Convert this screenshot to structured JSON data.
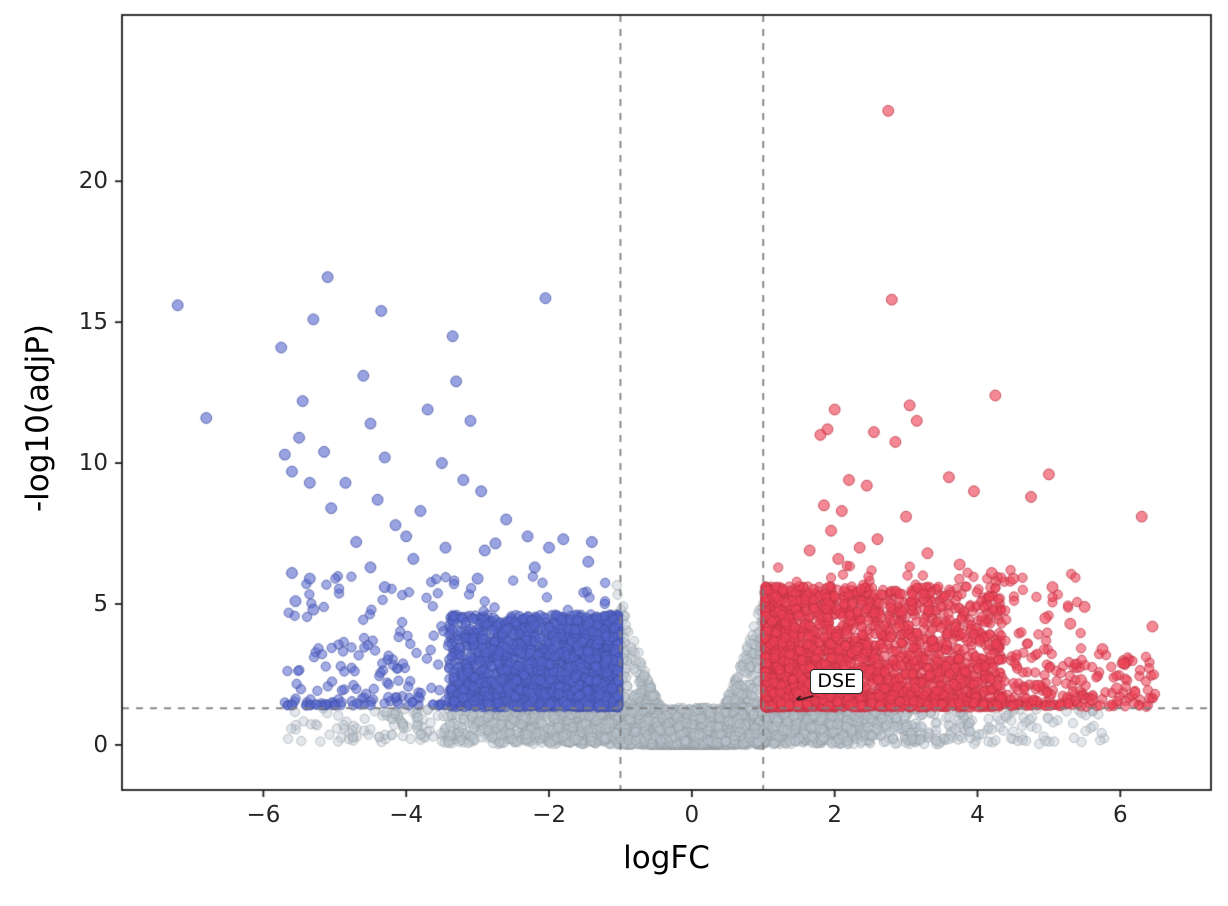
{
  "figure": {
    "background": "#ffffff"
  },
  "chart_data": {
    "type": "scatter",
    "variant": "volcano-plot",
    "title": "",
    "xlabel": "logFC",
    "ylabel": "-log10(adjP)",
    "xlim": [
      -7.98,
      7.27
    ],
    "ylim": [
      -1.6,
      25.9
    ],
    "xticks": [
      -6,
      -4,
      -2,
      0,
      2,
      4,
      6
    ],
    "yticks": [
      0,
      5,
      10,
      15,
      20
    ],
    "grid": false,
    "legend": null,
    "threshold_lines": {
      "vertical_x": [
        -1,
        1
      ],
      "horizontal_y": 1.3,
      "style": "dashed",
      "color": "#7f7f7f"
    },
    "annotation": {
      "label": "DSE",
      "label_x": 1.66,
      "label_y": 2.2,
      "point_x": 1.5,
      "point_y": 1.8
    },
    "series_colors": {
      "up": "#ee4256",
      "down": "#5566cd",
      "ns": "#b8c4cc"
    },
    "notable_points": {
      "down": [
        [
          -5.1,
          16.6
        ],
        [
          -7.2,
          15.6
        ],
        [
          -2.05,
          15.85
        ],
        [
          -4.35,
          15.4
        ],
        [
          -5.3,
          15.1
        ],
        [
          -3.35,
          14.5
        ],
        [
          -5.75,
          14.1
        ],
        [
          -4.6,
          13.1
        ],
        [
          -3.3,
          12.9
        ],
        [
          -5.45,
          12.2
        ],
        [
          -3.7,
          11.9
        ],
        [
          -6.8,
          11.6
        ],
        [
          -4.5,
          11.4
        ],
        [
          -3.1,
          11.5
        ],
        [
          -5.5,
          10.9
        ],
        [
          -5.7,
          10.3
        ],
        [
          -5.15,
          10.4
        ],
        [
          -4.3,
          10.2
        ],
        [
          -3.5,
          10.0
        ],
        [
          -5.6,
          9.7
        ],
        [
          -5.35,
          9.3
        ],
        [
          -4.85,
          9.3
        ],
        [
          -3.2,
          9.4
        ],
        [
          -2.95,
          9.0
        ],
        [
          -4.4,
          8.7
        ],
        [
          -5.05,
          8.4
        ],
        [
          -3.8,
          8.3
        ],
        [
          -2.6,
          8.0
        ],
        [
          -4.15,
          7.8
        ],
        [
          -2.3,
          7.4
        ],
        [
          -1.4,
          7.2
        ],
        [
          -2.0,
          7.0
        ],
        [
          -4.7,
          7.2
        ],
        [
          -4.0,
          7.4
        ],
        [
          -3.45,
          7.0
        ],
        [
          -2.75,
          7.15
        ],
        [
          -1.8,
          7.3
        ],
        [
          -1.45,
          6.5
        ],
        [
          -2.2,
          6.3
        ],
        [
          -3.0,
          5.9
        ],
        [
          -4.3,
          5.6
        ],
        [
          -3.9,
          6.6
        ],
        [
          -2.9,
          6.9
        ],
        [
          -5.6,
          6.1
        ],
        [
          -5.35,
          5.9
        ],
        [
          -4.5,
          6.3
        ],
        [
          -5.55,
          5.1
        ],
        [
          -5.3,
          4.8
        ]
      ],
      "up": [
        [
          2.75,
          22.5
        ],
        [
          2.8,
          15.8
        ],
        [
          4.25,
          12.4
        ],
        [
          3.05,
          12.05
        ],
        [
          2.0,
          11.9
        ],
        [
          3.15,
          11.5
        ],
        [
          1.9,
          11.2
        ],
        [
          1.8,
          11.0
        ],
        [
          2.55,
          11.1
        ],
        [
          2.85,
          10.75
        ],
        [
          5.0,
          9.6
        ],
        [
          3.6,
          9.5
        ],
        [
          2.2,
          9.4
        ],
        [
          2.45,
          9.2
        ],
        [
          4.75,
          8.8
        ],
        [
          3.95,
          9.0
        ],
        [
          1.85,
          8.5
        ],
        [
          2.1,
          8.3
        ],
        [
          3.0,
          8.1
        ],
        [
          6.3,
          8.1
        ],
        [
          1.95,
          7.6
        ],
        [
          2.6,
          7.3
        ],
        [
          2.35,
          7.0
        ],
        [
          1.65,
          6.9
        ],
        [
          2.05,
          6.6
        ],
        [
          3.3,
          6.8
        ],
        [
          3.75,
          6.4
        ],
        [
          4.2,
          6.1
        ],
        [
          4.5,
          5.9
        ],
        [
          5.05,
          5.6
        ],
        [
          5.5,
          4.9
        ],
        [
          6.45,
          4.2
        ],
        [
          4.95,
          4.5
        ],
        [
          5.3,
          4.3
        ],
        [
          5.75,
          3.4
        ],
        [
          5.45,
          2.3
        ],
        [
          5.95,
          2.0
        ],
        [
          6.2,
          1.85
        ],
        [
          5.6,
          1.6
        ],
        [
          4.85,
          2.1
        ],
        [
          6.05,
          2.9
        ],
        [
          1.5,
          1.8
        ]
      ]
    },
    "generation": {
      "seed": 42,
      "point_radius": 4.6,
      "notable_radius": 5.4,
      "alpha": {
        "ns": 0.4,
        "down": 0.55,
        "up": 0.58
      },
      "clusters": [
        {
          "series": "ns",
          "count": 2600,
          "kind": "funnel",
          "x_sd": 0.5,
          "x_clip": 1.06,
          "env_scale": 5.2,
          "env_exp": 1.7,
          "y_pow": 1.6
        },
        {
          "series": "ns",
          "count": 2300,
          "kind": "band",
          "x_sd": 1.6,
          "x_clip": 5.7,
          "y_min": 0.03,
          "y_max": 1.32,
          "y_pow": 1.1
        },
        {
          "series": "ns",
          "count": 600,
          "kind": "band",
          "x_sd": 3.1,
          "x_clip": 5.8,
          "y_min": 0.1,
          "y_max": 1.3,
          "y_pow": 1.0
        },
        {
          "series": "down",
          "count": 2200,
          "kind": "block",
          "x_near": -1.03,
          "x_far": -3.4,
          "x_bias": 1.8,
          "y_base": 1.33,
          "y_span": 3.3,
          "y_pow": 1.4
        },
        {
          "series": "down",
          "count": 300,
          "kind": "uniform",
          "x_min": -5.7,
          "x_max": -1.15,
          "y_base": 1.4,
          "y_span": 4.6,
          "y_pow": 2.6
        },
        {
          "series": "up",
          "count": 2700,
          "kind": "block",
          "x_near": 1.03,
          "x_far": 4.35,
          "x_bias": 2.4,
          "y_base": 1.33,
          "y_span": 4.3,
          "y_pow": 1.5
        },
        {
          "series": "up",
          "count": 380,
          "kind": "uniform",
          "x_min": 1.1,
          "x_max": 5.5,
          "y_base": 1.4,
          "y_span": 5.0,
          "y_pow": 2.8
        },
        {
          "series": "up",
          "count": 110,
          "kind": "uniform",
          "x_min": 4.35,
          "x_max": 6.5,
          "y_base": 1.35,
          "y_span": 1.9,
          "y_pow": 1.6
        }
      ]
    }
  }
}
